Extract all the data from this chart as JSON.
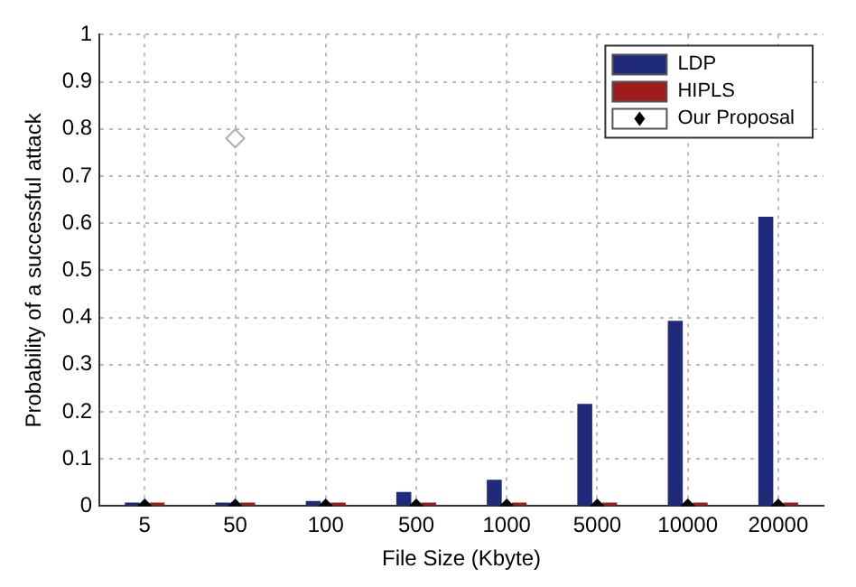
{
  "chart_data": {
    "type": "bar",
    "xlabel": "File Size (Kbyte)",
    "ylabel": "Probability of a successful attack",
    "categories": [
      "5",
      "50",
      "100",
      "500",
      "1000",
      "5000",
      "10000",
      "20000"
    ],
    "series": [
      {
        "name": "LDP",
        "color": "#1f2a7a",
        "values": [
          0.003,
          0.005,
          0.011,
          0.03,
          0.056,
          0.217,
          0.393,
          0.614
        ]
      },
      {
        "name": "HIPLS",
        "color": "#a01c1c",
        "values": [
          0.003,
          0.003,
          0.003,
          0.003,
          0.003,
          0.003,
          0.003,
          0.003
        ]
      },
      {
        "type": "scatter",
        "name": "Our Proposal",
        "color": "#000000",
        "marker": "diamond",
        "values": [
          0,
          0,
          0,
          0,
          0,
          0,
          0,
          0
        ]
      },
      {
        "type": "scatter",
        "color": "#b0b0b0",
        "marker": "diamond",
        "values": [
          null,
          0.78,
          null,
          null,
          null,
          null,
          null,
          null
        ]
      }
    ],
    "ylim": [
      0,
      1
    ],
    "yticks": [
      0,
      0.1,
      0.2,
      0.3,
      0.4,
      0.5,
      0.6,
      0.7,
      0.8,
      0.9,
      1
    ],
    "grid": true,
    "legend": "top right"
  }
}
